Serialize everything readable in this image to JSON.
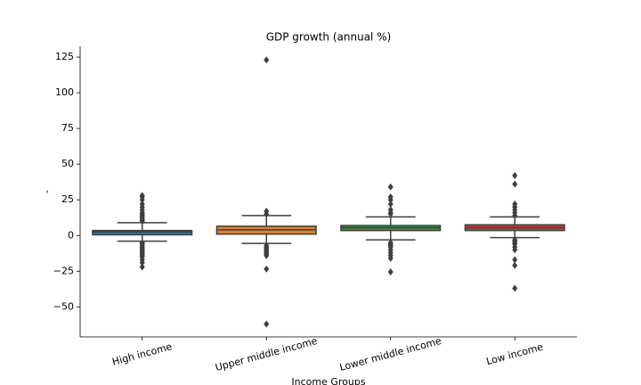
{
  "chart_data": {
    "type": "box",
    "title": "GDP growth (annual %)",
    "xlabel": "Income Groups",
    "ylabel": "-",
    "categories": [
      "High income",
      "Upper middle income",
      "Lower middle income",
      "Low income"
    ],
    "colors": [
      "#3274a1",
      "#e1812c",
      "#3a923a",
      "#c03d3e"
    ],
    "boxes": [
      {
        "whisker_low": -4,
        "q1": 0.5,
        "median": 2.5,
        "q3": 3.5,
        "whisker_high": 9,
        "outliers": [
          10,
          11,
          12,
          13,
          14,
          15,
          16,
          18,
          20,
          22,
          25,
          27,
          28,
          -5,
          -6,
          -7,
          -8,
          -9,
          -10,
          -11,
          -12,
          -13,
          -14,
          -15,
          -17,
          -19,
          -22
        ]
      },
      {
        "whisker_low": -5.5,
        "q1": 1,
        "median": 4,
        "q3": 6.5,
        "whisker_high": 14,
        "outliers": [
          123,
          17,
          15,
          -7,
          -8,
          -9,
          -10,
          -11,
          -12,
          -13,
          -14,
          -23.5,
          -62
        ]
      },
      {
        "whisker_low": -3,
        "q1": 3.5,
        "median": 5.5,
        "q3": 7,
        "whisker_high": 13,
        "outliers": [
          34,
          27,
          25,
          22,
          18,
          16,
          15,
          -5,
          -6,
          -7,
          -8,
          -10,
          -12,
          -14,
          -16,
          -25.5
        ]
      },
      {
        "whisker_low": -1.5,
        "q1": 3.5,
        "median": 5.5,
        "q3": 7.5,
        "whisker_high": 13,
        "outliers": [
          42,
          36,
          22,
          20,
          18,
          16,
          14,
          -3,
          -4,
          -5,
          -6,
          -8,
          -10,
          -17,
          -21,
          -37
        ]
      }
    ],
    "ylim": [
      -71,
      132.5
    ],
    "yticks": [
      {
        "value": -50,
        "label": "−50"
      },
      {
        "value": -25,
        "label": "−25"
      },
      0,
      25,
      50,
      75,
      100,
      125
    ]
  }
}
